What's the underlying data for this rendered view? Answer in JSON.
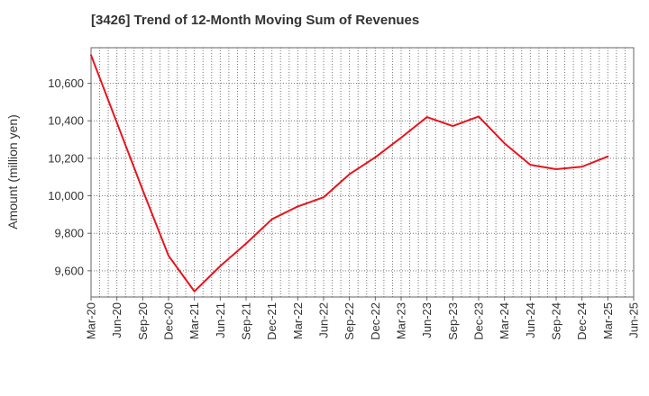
{
  "chart_data": {
    "type": "line",
    "title": "[3426]  Trend of 12-Month Moving Sum of Revenues",
    "xlabel": "",
    "ylabel": "Amount (million yen)",
    "x_ticks": [
      "Mar-20",
      "Jun-20",
      "Sep-20",
      "Dec-20",
      "Mar-21",
      "Jun-21",
      "Sep-21",
      "Dec-21",
      "Mar-22",
      "Jun-22",
      "Sep-22",
      "Dec-22",
      "Mar-23",
      "Jun-23",
      "Sep-23",
      "Dec-23",
      "Mar-24",
      "Jun-24",
      "Sep-24",
      "Dec-24",
      "Mar-25",
      "Jun-25"
    ],
    "y_ticks": [
      9600,
      9800,
      10000,
      10200,
      10400,
      10600
    ],
    "y_tick_labels": [
      "9,600",
      "9,800",
      "10,000",
      "10,200",
      "10,400",
      "10,600"
    ],
    "ylim": [
      9460,
      10790
    ],
    "grid": true,
    "series": [
      {
        "color": "#e8141c",
        "x": [
          "Mar-20",
          "Jun-20",
          "Sep-20",
          "Dec-20",
          "Mar-21",
          "Jun-21",
          "Sep-21",
          "Dec-21",
          "Mar-22",
          "Jun-22",
          "Sep-22",
          "Dec-22",
          "Mar-23",
          "Jun-23",
          "Sep-23",
          "Dec-23",
          "Mar-24",
          "Jun-24",
          "Sep-24",
          "Dec-24",
          "Mar-25"
        ],
        "values": [
          10750,
          10390,
          10030,
          9680,
          9490,
          9625,
          9745,
          9875,
          9943,
          9992,
          10115,
          10205,
          10310,
          10420,
          10372,
          10423,
          10280,
          10165,
          10142,
          10155,
          10210
        ]
      }
    ]
  }
}
